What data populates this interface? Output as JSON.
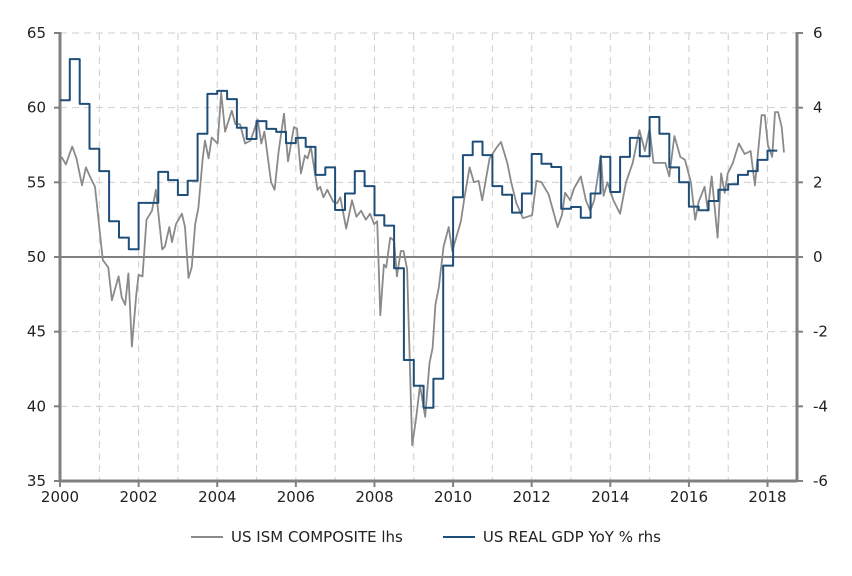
{
  "chart_data": {
    "type": "line",
    "title": "",
    "xlabel": "",
    "ylabel": "",
    "xlim": [
      2000,
      2018.75
    ],
    "ylim_left": [
      35,
      65
    ],
    "ylim_right": [
      -6,
      6
    ],
    "x_ticks": [
      "2000",
      "2002",
      "2004",
      "2006",
      "2008",
      "2010",
      "2012",
      "2014",
      "2016",
      "2018"
    ],
    "left_ticks": [
      "35",
      "40",
      "45",
      "50",
      "55",
      "60",
      "65"
    ],
    "right_ticks": [
      "-6",
      "-4",
      "-2",
      "0",
      "2",
      "4",
      "6"
    ],
    "grid": true,
    "legend_position": "bottom",
    "reference_line_left": 50,
    "colors": {
      "ism": "#8a8a8a",
      "gdp": "#1f4e79",
      "axis": "#808080",
      "grid": "#cfcfcf"
    },
    "series": [
      {
        "name": "US ISM COMPOSITE lhs",
        "axis": "left",
        "x": [
          2000.04,
          2000.15,
          2000.31,
          2000.42,
          2000.56,
          2000.66,
          2000.76,
          2000.89,
          2001.09,
          2001.23,
          2001.32,
          2001.49,
          2001.57,
          2001.66,
          2001.74,
          2001.83,
          2001.94,
          2002.0,
          2002.1,
          2002.2,
          2002.34,
          2002.44,
          2002.6,
          2002.67,
          2002.78,
          2002.85,
          2002.95,
          2003.1,
          2003.18,
          2003.27,
          2003.35,
          2003.44,
          2003.52,
          2003.63,
          2003.69,
          2003.78,
          2003.86,
          2004.01,
          2004.1,
          2004.2,
          2004.37,
          2004.46,
          2004.58,
          2004.71,
          2004.85,
          2005.03,
          2005.12,
          2005.2,
          2005.37,
          2005.46,
          2005.56,
          2005.7,
          2005.8,
          2005.95,
          2006.03,
          2006.13,
          2006.23,
          2006.3,
          2006.38,
          2006.55,
          2006.62,
          2006.7,
          2006.8,
          2006.95,
          2007.05,
          2007.13,
          2007.28,
          2007.43,
          2007.54,
          2007.66,
          2007.78,
          2007.89,
          2007.99,
          2008.07,
          2008.15,
          2008.24,
          2008.3,
          2008.4,
          2008.5,
          2008.57,
          2008.67,
          2008.74,
          2008.83,
          2008.96,
          2009.06,
          2009.16,
          2009.29,
          2009.4,
          2009.48,
          2009.55,
          2009.64,
          2009.76,
          2009.89,
          2009.98,
          2010.08,
          2010.2,
          2010.29,
          2010.42,
          2010.53,
          2010.65,
          2010.74,
          2010.93,
          2011.1,
          2011.22,
          2011.38,
          2011.48,
          2011.61,
          2011.78,
          2011.89,
          2012.01,
          2012.12,
          2012.25,
          2012.43,
          2012.66,
          2012.77,
          2012.85,
          2012.98,
          2013.08,
          2013.25,
          2013.38,
          2013.49,
          2013.59,
          2013.76,
          2013.83,
          2013.93,
          2014.08,
          2014.25,
          2014.4,
          2014.57,
          2014.74,
          2014.88,
          2015.0,
          2015.1,
          2015.2,
          2015.4,
          2015.5,
          2015.63,
          2015.78,
          2015.9,
          2016.05,
          2016.16,
          2016.25,
          2016.4,
          2016.48,
          2016.58,
          2016.73,
          2016.82,
          2016.91,
          2016.99,
          2017.12,
          2017.27,
          2017.42,
          2017.57,
          2017.68,
          2017.85,
          2017.93,
          2018.01,
          2018.12,
          2018.19,
          2018.27,
          2018.36,
          2018.42
        ],
        "y": [
          56.7,
          56.2,
          57.4,
          56.6,
          54.8,
          56.0,
          55.4,
          54.7,
          49.8,
          49.3,
          47.1,
          48.7,
          47.3,
          46.8,
          48.9,
          44.0,
          47.5,
          48.8,
          48.7,
          52.5,
          53.1,
          54.5,
          50.5,
          50.7,
          52.0,
          51.0,
          52.2,
          52.9,
          52.0,
          48.6,
          49.3,
          52.2,
          53.3,
          56.6,
          57.8,
          56.6,
          58.0,
          57.6,
          61.0,
          58.4,
          59.8,
          58.9,
          58.9,
          57.6,
          57.8,
          59.2,
          57.6,
          58.4,
          55.0,
          54.5,
          57.0,
          59.6,
          56.4,
          58.7,
          58.6,
          55.6,
          56.8,
          56.6,
          57.4,
          54.5,
          54.7,
          54.0,
          54.5,
          53.7,
          53.6,
          54.0,
          51.9,
          53.8,
          52.7,
          53.1,
          52.5,
          52.9,
          52.2,
          52.4,
          46.1,
          49.5,
          49.3,
          51.3,
          51.1,
          48.7,
          50.4,
          50.4,
          49.2,
          37.4,
          39.2,
          41.4,
          39.3,
          42.9,
          43.9,
          46.8,
          48.0,
          50.7,
          52.0,
          50.4,
          51.3,
          52.4,
          54.0,
          56.0,
          55.0,
          55.1,
          53.8,
          56.6,
          57.3,
          57.7,
          56.3,
          55.0,
          53.6,
          52.6,
          52.7,
          52.8,
          55.1,
          55.0,
          54.2,
          52.0,
          52.8,
          54.3,
          53.8,
          54.6,
          55.4,
          53.8,
          53.1,
          53.8,
          56.8,
          54.1,
          55.0,
          53.8,
          52.9,
          55.0,
          56.3,
          58.5,
          57.1,
          58.6,
          56.3,
          56.3,
          56.3,
          55.4,
          58.1,
          56.7,
          56.5,
          55.0,
          52.5,
          53.7,
          54.7,
          53.1,
          55.4,
          51.3,
          55.6,
          54.3,
          55.6,
          56.3,
          57.6,
          56.9,
          57.1,
          54.8,
          59.5,
          59.5,
          57.5,
          56.7,
          59.7,
          59.7,
          58.7,
          57.0
        ]
      },
      {
        "name": "US REAL GDP YoY % rhs",
        "axis": "right",
        "step": true,
        "start": 2000,
        "frequency": "quarterly",
        "values": [
          4.2,
          5.3,
          4.1,
          2.9,
          2.3,
          0.96,
          0.52,
          0.21,
          1.45,
          1.45,
          2.28,
          2.06,
          1.66,
          2.04,
          3.3,
          4.37,
          4.45,
          4.23,
          3.46,
          3.16,
          3.64,
          3.43,
          3.35,
          3.05,
          3.19,
          2.95,
          2.2,
          2.4,
          1.26,
          1.7,
          2.3,
          1.9,
          1.12,
          0.84,
          -0.3,
          -2.76,
          -3.45,
          -4.04,
          -3.26,
          -0.23,
          1.6,
          2.73,
          3.09,
          2.73,
          1.9,
          1.67,
          1.19,
          1.7,
          2.76,
          2.5,
          2.41,
          1.29,
          1.34,
          1.05,
          1.7,
          2.68,
          1.74,
          2.68,
          3.19,
          2.7,
          3.75,
          3.3,
          2.4,
          2.0,
          1.35,
          1.25,
          1.5,
          1.8,
          1.95,
          2.2,
          2.3,
          2.6,
          2.85
        ]
      }
    ]
  }
}
